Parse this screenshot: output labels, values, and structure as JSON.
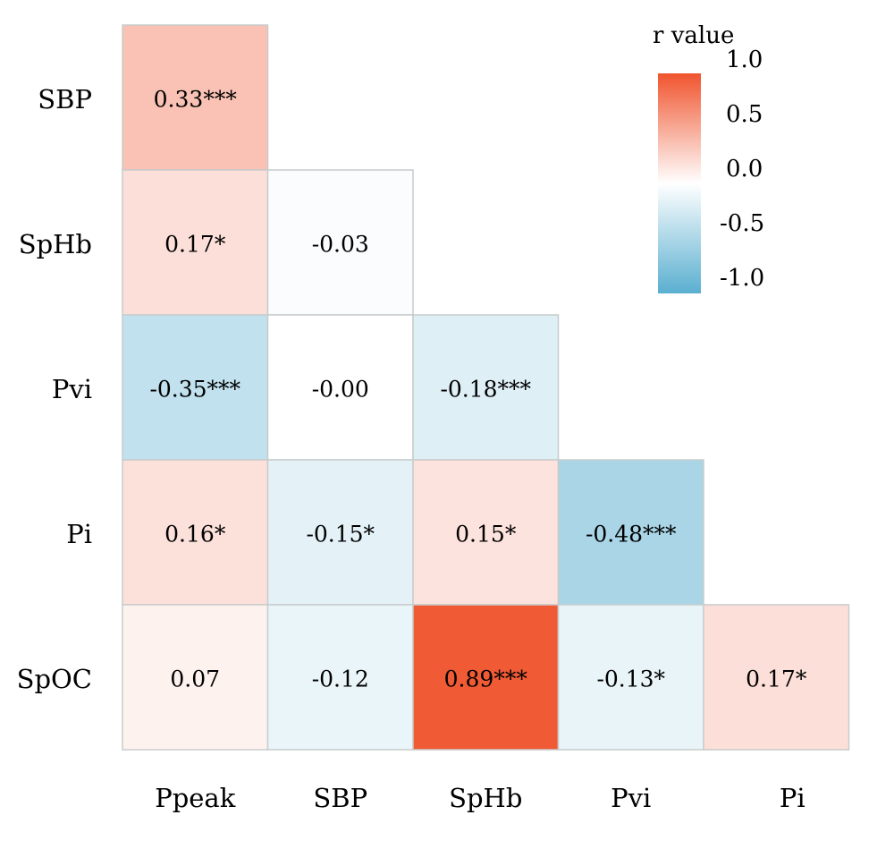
{
  "chart_data": {
    "type": "heatmap",
    "title": "",
    "x_categories": [
      "Ppeak",
      "SBP",
      "SpHb",
      "Pvi",
      "Pi"
    ],
    "y_categories": [
      "SBP",
      "SpHb",
      "Pvi",
      "Pi",
      "SpOC"
    ],
    "cells": [
      {
        "row": 0,
        "col": 0,
        "value": 0.33,
        "label": "0.33***"
      },
      {
        "row": 1,
        "col": 0,
        "value": 0.17,
        "label": "0.17*"
      },
      {
        "row": 1,
        "col": 1,
        "value": -0.03,
        "label": "-0.03"
      },
      {
        "row": 2,
        "col": 0,
        "value": -0.35,
        "label": "-0.35***"
      },
      {
        "row": 2,
        "col": 1,
        "value": -0.0,
        "label": "-0.00"
      },
      {
        "row": 2,
        "col": 2,
        "value": -0.18,
        "label": "-0.18***"
      },
      {
        "row": 3,
        "col": 0,
        "value": 0.16,
        "label": "0.16*"
      },
      {
        "row": 3,
        "col": 1,
        "value": -0.15,
        "label": "-0.15*"
      },
      {
        "row": 3,
        "col": 2,
        "value": 0.15,
        "label": "0.15*"
      },
      {
        "row": 3,
        "col": 3,
        "value": -0.48,
        "label": "-0.48***"
      },
      {
        "row": 4,
        "col": 0,
        "value": 0.07,
        "label": "0.07"
      },
      {
        "row": 4,
        "col": 1,
        "value": -0.12,
        "label": "-0.12"
      },
      {
        "row": 4,
        "col": 2,
        "value": 0.89,
        "label": "0.89***"
      },
      {
        "row": 4,
        "col": 3,
        "value": -0.13,
        "label": "-0.13*"
      },
      {
        "row": 4,
        "col": 4,
        "value": 0.17,
        "label": "0.17*"
      }
    ],
    "legend": {
      "title": "r value",
      "ticks": [
        1.0,
        0.5,
        0.0,
        -0.5,
        -1.0
      ],
      "tick_labels": [
        "1.0",
        "0.5",
        "0.0",
        "-0.5",
        "-1.0"
      ],
      "range": [
        -1,
        1
      ],
      "placement": "top-right"
    },
    "colors": {
      "positive": "#f0542e",
      "zero": "#ffffff",
      "negative": "#5aafd0",
      "border": "#c8cccc"
    }
  }
}
